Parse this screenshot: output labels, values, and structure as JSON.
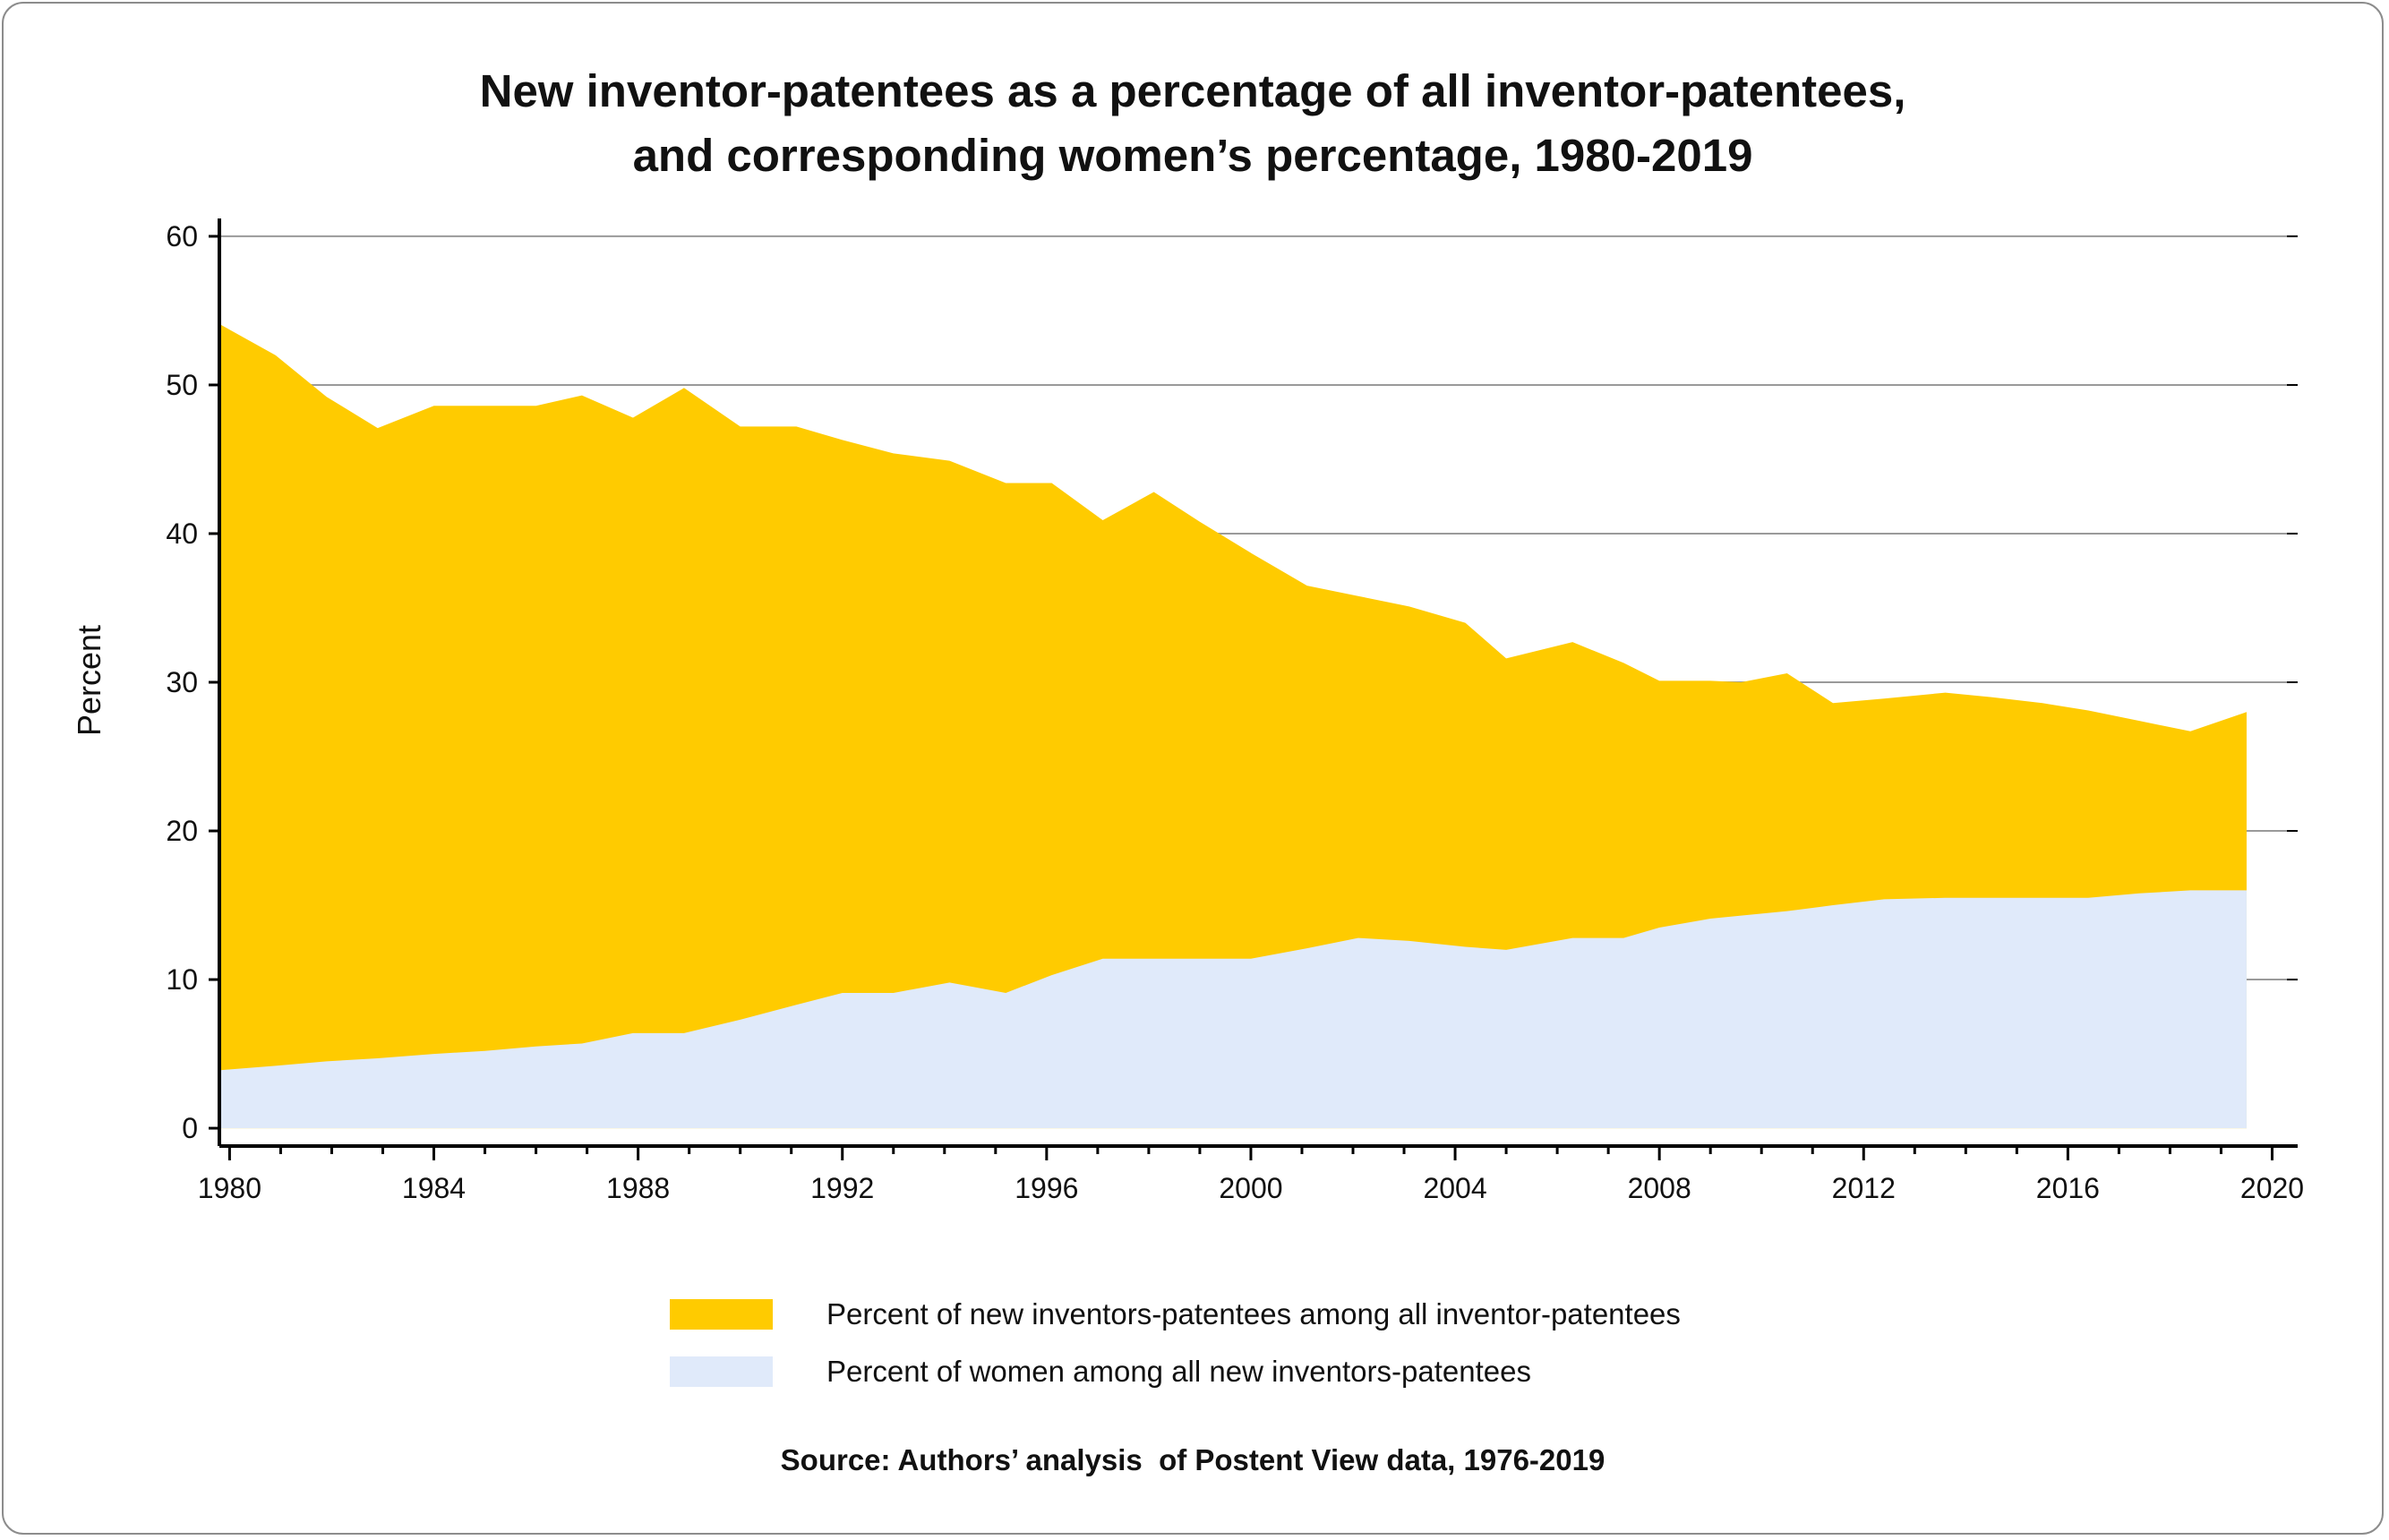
{
  "title_line1": "New inventor-patentees as a percentage of all inventor-patentees,",
  "title_line2": "and corresponding women’s percentage, 1980-2019",
  "source": "Source: Authors’ analysis  of Postent View data, 1976-2019",
  "chart_data": {
    "type": "area",
    "ylabel": "Percent",
    "xlabel": "",
    "xlim": [
      1979.8,
      2020.5
    ],
    "ylim": [
      -1.2,
      61.2
    ],
    "yticks": [
      0,
      10,
      20,
      30,
      40,
      50,
      60
    ],
    "xticks": [
      1980,
      1984,
      1988,
      1992,
      1996,
      2000,
      2004,
      2008,
      2012,
      2016,
      2020
    ],
    "grid": true,
    "legend_position": "bottom-center",
    "series": [
      {
        "name": "Percent of new inventors-patentees among all inventor-patentees",
        "color": "#FFCB00",
        "x": [
          1979.8,
          1980.9,
          1981.9,
          1982.9,
          1984.0,
          1985.0,
          1986.0,
          1986.9,
          1987.9,
          1988.9,
          1990.0,
          1991.1,
          1992.0,
          1993.0,
          1994.1,
          1995.2,
          1996.1,
          1997.1,
          1998.1,
          1999.0,
          2000.0,
          2001.1,
          2002.1,
          2003.1,
          2004.2,
          2005.0,
          2006.3,
          2007.3,
          2008.0,
          2009.0,
          2009.6,
          2010.5,
          2011.4,
          2012.4,
          2013.6,
          2014.5,
          2015.5,
          2016.4,
          2017.4,
          2018.4,
          2019.5
        ],
        "values": [
          54.1,
          52.0,
          49.2,
          47.1,
          48.6,
          48.6,
          48.6,
          49.3,
          47.8,
          49.8,
          47.2,
          47.2,
          46.3,
          45.4,
          44.9,
          43.4,
          43.4,
          40.9,
          42.8,
          40.8,
          38.7,
          36.5,
          35.8,
          35.1,
          34.0,
          31.6,
          32.7,
          31.3,
          30.1,
          30.1,
          30.0,
          30.6,
          28.6,
          28.9,
          29.3,
          29.0,
          28.6,
          28.1,
          27.4,
          26.7,
          28.0
        ]
      },
      {
        "name": "Percent of women among all new inventors-patentees",
        "color": "#E0EAFA",
        "x": [
          1979.8,
          1980.9,
          1981.9,
          1982.9,
          1984.0,
          1985.0,
          1986.0,
          1986.9,
          1987.9,
          1988.9,
          1990.0,
          1991.1,
          1992.0,
          1993.0,
          1994.1,
          1995.2,
          1996.1,
          1997.1,
          1998.1,
          1999.0,
          2000.0,
          2001.1,
          2002.1,
          2003.1,
          2004.2,
          2005.0,
          2006.3,
          2007.3,
          2008.0,
          2009.0,
          2009.6,
          2010.5,
          2011.4,
          2012.4,
          2013.6,
          2014.5,
          2015.5,
          2016.4,
          2017.4,
          2018.4,
          2019.5
        ],
        "values": [
          3.9,
          4.2,
          4.5,
          4.7,
          5.0,
          5.2,
          5.5,
          5.7,
          6.4,
          6.4,
          7.3,
          8.3,
          9.1,
          9.1,
          9.8,
          9.1,
          10.3,
          11.4,
          11.4,
          11.4,
          11.4,
          12.1,
          12.8,
          12.6,
          12.2,
          12.0,
          12.8,
          12.8,
          13.5,
          14.1,
          14.3,
          14.6,
          15.0,
          15.4,
          15.5,
          15.5,
          15.5,
          15.5,
          15.8,
          16.0,
          16.0
        ]
      }
    ]
  }
}
